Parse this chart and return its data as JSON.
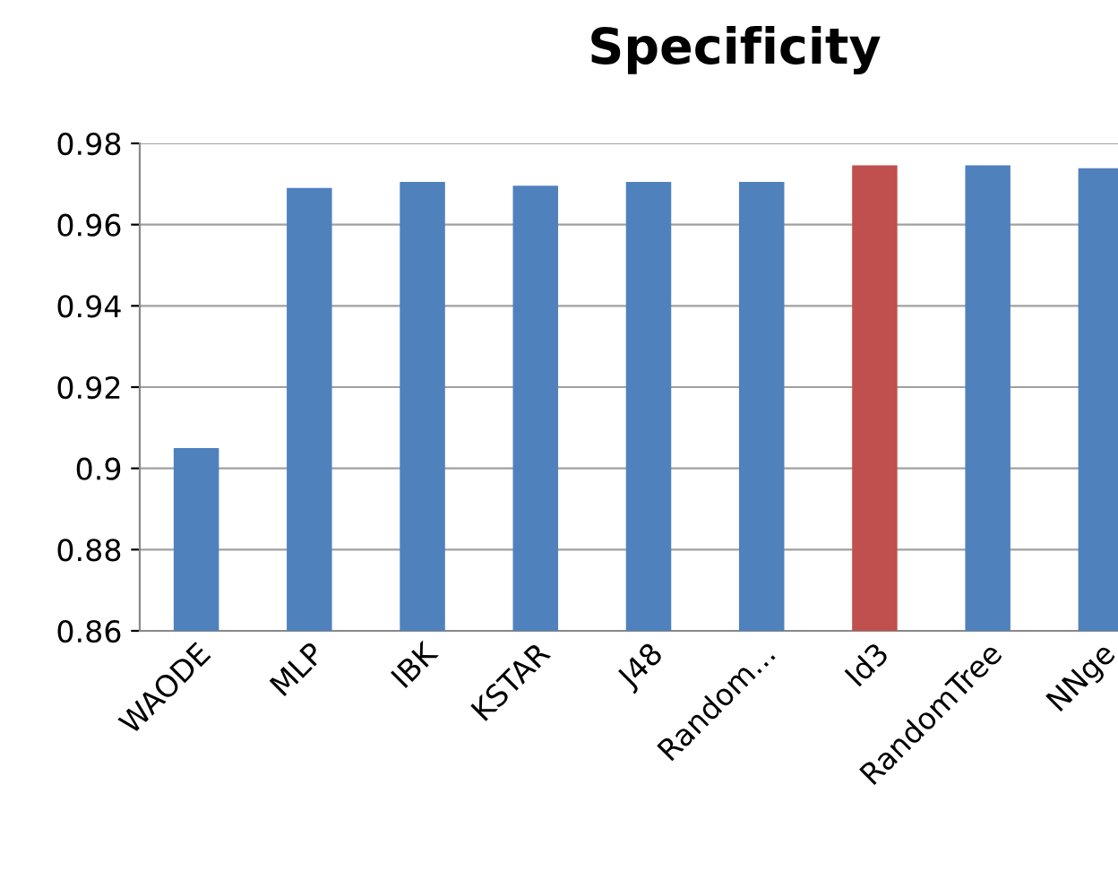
{
  "chart_data": {
    "type": "bar",
    "title": "Specificity",
    "categories": [
      "WAODE",
      "MLP",
      "IBK",
      "KSTAR",
      "J48",
      "Random...",
      "Id3",
      "RandomTree",
      "NNge"
    ],
    "values": [
      0.905,
      0.969,
      0.9705,
      0.9696,
      0.9705,
      0.9705,
      0.9746,
      0.9746,
      0.9739
    ],
    "colors": [
      "#4f81bd",
      "#4f81bd",
      "#4f81bd",
      "#4f81bd",
      "#4f81bd",
      "#4f81bd",
      "#c0504d",
      "#4f81bd",
      "#4f81bd"
    ],
    "ylim": [
      0.86,
      0.98
    ],
    "yticks": [
      0.86,
      0.88,
      {
        "value": 0.9,
        "label": "0.9"
      },
      0.92,
      0.94,
      0.96,
      0.98
    ],
    "grid": "y"
  }
}
